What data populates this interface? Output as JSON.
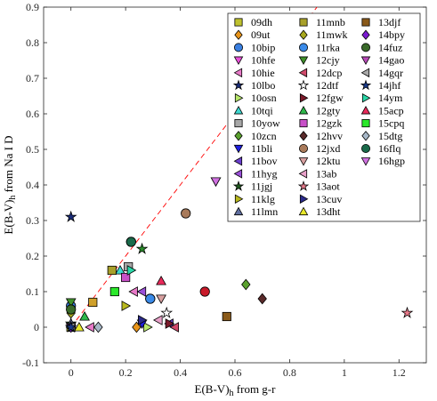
{
  "chart_data": {
    "type": "scatter",
    "xlabel": "E(B-V)_h from g-r",
    "ylabel": "E(B-V)_h from Na I D",
    "xlim": [
      -0.1,
      1.3
    ],
    "ylim": [
      -0.1,
      0.9
    ],
    "xticks": [
      "0",
      "0.2",
      "0.4",
      "0.6",
      "0.8",
      "1",
      "1.2"
    ],
    "xtick_values": [
      0,
      0.2,
      0.4,
      0.6,
      0.8,
      1.0,
      1.2
    ],
    "yticks": [
      "-0.1",
      "0",
      "0.1",
      "0.2",
      "0.3",
      "0.4",
      "0.5",
      "0.6",
      "0.7",
      "0.8",
      "0.9"
    ],
    "ytick_values": [
      -0.1,
      0,
      0.1,
      0.2,
      0.3,
      0.4,
      0.5,
      0.6,
      0.7,
      0.8,
      0.9
    ],
    "grid": false,
    "legend_placement": "top-right",
    "reference_line": {
      "style": "dashed",
      "color": "#ff0000",
      "slope": 1,
      "intercept": 0
    },
    "series": [
      {
        "name": "09dh",
        "marker": "square",
        "color": "#bfc22e",
        "points": [
          [
            0.0,
            0.0
          ]
        ]
      },
      {
        "name": "09ut",
        "marker": "diamond",
        "color": "#e8941a",
        "points": [
          [
            0.24,
            0.0
          ]
        ]
      },
      {
        "name": "10bip",
        "marker": "circle",
        "color": "#3a7fe0",
        "points": [
          [
            0.0,
            0.06
          ],
          [
            0.29,
            0.08
          ]
        ]
      },
      {
        "name": "10hfe",
        "marker": "triangle-down",
        "color": "#e84fd8",
        "points": [
          [
            0.0,
            0.0
          ]
        ]
      },
      {
        "name": "10hie",
        "marker": "triangle-left",
        "color": "#e87ac8",
        "points": [
          [
            0.23,
            0.1
          ],
          [
            0.07,
            0.0
          ]
        ]
      },
      {
        "name": "10lbo",
        "marker": "star",
        "color": "#1a2d7a",
        "points": [
          [
            0.0,
            0.31
          ]
        ]
      },
      {
        "name": "10osn",
        "marker": "triangle-right",
        "color": "#b8e86a",
        "points": [
          [
            0.28,
            0.0
          ]
        ]
      },
      {
        "name": "10tqi",
        "marker": "triangle-up",
        "color": "#3ed8d0",
        "points": [
          [
            0.18,
            0.16
          ]
        ]
      },
      {
        "name": "10yow",
        "marker": "square",
        "color": "#a8a8a8",
        "points": [
          [
            0.21,
            0.17
          ]
        ]
      },
      {
        "name": "10zcn",
        "marker": "diamond",
        "color": "#5aa12e",
        "points": [
          [
            0.64,
            0.12
          ]
        ]
      },
      {
        "name": "11bli",
        "marker": "triangle-down",
        "color": "#1f1fe0",
        "points": [
          [
            0.26,
            0.01
          ]
        ]
      },
      {
        "name": "11bov",
        "marker": "triangle-left",
        "color": "#6b3fd0",
        "points": [
          [
            0.36,
            0.01
          ]
        ]
      },
      {
        "name": "11hyg",
        "marker": "triangle-left",
        "color": "#9a4fd8",
        "points": [
          [
            0.26,
            0.1
          ]
        ]
      },
      {
        "name": "11jgj",
        "marker": "star",
        "color": "#1f5a1f",
        "points": [
          [
            0.0,
            0.01
          ]
        ]
      },
      {
        "name": "11klg",
        "marker": "triangle-right",
        "color": "#b8b81e",
        "points": [
          [
            0.2,
            0.06
          ]
        ]
      },
      {
        "name": "11lmn",
        "marker": "triangle-up",
        "color": "#606fa0",
        "points": [
          [
            0.0,
            0.01
          ]
        ]
      },
      {
        "name": "11mnb",
        "marker": "square",
        "color": "#a8a02a",
        "points": [
          [
            0.15,
            0.16
          ]
        ]
      },
      {
        "name": "11mwk",
        "marker": "diamond",
        "color": "#a8a81e",
        "points": [
          [
            0.0,
            0.04
          ]
        ]
      },
      {
        "name": "11rka",
        "marker": "circle",
        "color": "#3a8ae8",
        "points": [
          [
            0.29,
            0.08
          ]
        ]
      },
      {
        "name": "12cjy",
        "marker": "triangle-down",
        "color": "#3f8f2a",
        "points": [
          [
            0.0,
            0.07
          ]
        ]
      },
      {
        "name": "12dcp",
        "marker": "triangle-left",
        "color": "#d04a6a",
        "points": [
          [
            0.38,
            0.0
          ]
        ]
      },
      {
        "name": "12dtf",
        "marker": "star-open",
        "color": "#ffffff",
        "points": [
          [
            0.35,
            0.04
          ]
        ]
      },
      {
        "name": "12fgw",
        "marker": "triangle-right",
        "color": "#7a1a2a",
        "points": [
          [
            0.36,
            0.01
          ]
        ]
      },
      {
        "name": "12gty",
        "marker": "triangle-up",
        "color": "#2eb84a",
        "points": [
          [
            0.05,
            0.03
          ]
        ]
      },
      {
        "name": "12gzk",
        "marker": "square",
        "color": "#c850c8",
        "points": [
          [
            0.2,
            0.14
          ]
        ]
      },
      {
        "name": "12hvv",
        "marker": "diamond",
        "color": "#5a2a2a",
        "points": [
          [
            0.7,
            0.08
          ]
        ]
      },
      {
        "name": "12jxd",
        "marker": "circle",
        "color": "#a87a5a",
        "points": [
          [
            0.42,
            0.32
          ]
        ]
      },
      {
        "name": "12ktu",
        "marker": "triangle-down",
        "color": "#d8a0a0",
        "points": [
          [
            0.33,
            0.08
          ]
        ]
      },
      {
        "name": "13ab",
        "marker": "triangle-left",
        "color": "#e8a0c8",
        "points": [
          [
            0.32,
            0.02
          ]
        ]
      },
      {
        "name": "13aot",
        "marker": "star",
        "color": "#e87a8a",
        "points": [
          [
            1.23,
            0.04
          ]
        ]
      },
      {
        "name": "13cuv",
        "marker": "triangle-right",
        "color": "#2a2a8a",
        "points": [
          [
            0.26,
            0.02
          ]
        ]
      },
      {
        "name": "13dht",
        "marker": "triangle-up",
        "color": "#e8e82a",
        "points": [
          [
            0.03,
            0.0
          ]
        ]
      },
      {
        "name": "13djf",
        "marker": "square",
        "color": "#8a5a1a",
        "points": [
          [
            0.57,
            0.03
          ]
        ]
      },
      {
        "name": "14bpy",
        "marker": "diamond",
        "color": "#7a1ad0",
        "points": [
          [
            0.0,
            0.0
          ]
        ]
      },
      {
        "name": "14fuz",
        "marker": "circle",
        "color": "#3a6a2a",
        "points": [
          [
            0.22,
            0.24
          ]
        ]
      },
      {
        "name": "14gao",
        "marker": "triangle-down",
        "color": "#b84ab8",
        "points": [
          [
            0.53,
            0.41
          ]
        ]
      },
      {
        "name": "14gqr",
        "marker": "triangle-left",
        "color": "#a8a8a8",
        "points": [
          [
            0.0,
            0.0
          ]
        ]
      },
      {
        "name": "14jhf",
        "marker": "star",
        "color": "#1a3a8a",
        "points": [
          [
            0.0,
            0.0
          ]
        ]
      },
      {
        "name": "14ym",
        "marker": "triangle-right",
        "color": "#2ad8a8",
        "points": [
          [
            0.22,
            0.16
          ]
        ]
      },
      {
        "name": "15acp",
        "marker": "triangle-up",
        "color": "#e82a5a",
        "points": [
          [
            0.33,
            0.13
          ]
        ]
      },
      {
        "name": "15cpq",
        "marker": "square",
        "color": "#2ae82a",
        "points": [
          [
            0.16,
            0.1
          ]
        ]
      },
      {
        "name": "15dtg",
        "marker": "diamond",
        "color": "#a8b8c8",
        "points": [
          [
            0.1,
            0.0
          ]
        ]
      },
      {
        "name": "16flq",
        "marker": "circle",
        "color": "#1a6a4a",
        "points": [
          [
            0.22,
            0.24
          ]
        ]
      },
      {
        "name": "16hgp",
        "marker": "triangle-down",
        "color": "#d070e0",
        "points": [
          [
            0.53,
            0.41
          ]
        ]
      },
      {
        "name": "",
        "marker": "star",
        "color": "#2a8a2a",
        "points": [
          [
            0.26,
            0.22
          ]
        ]
      },
      {
        "name": "",
        "marker": "circle",
        "color": "#c81a2a",
        "points": [
          [
            0.49,
            0.1
          ]
        ]
      },
      {
        "name": "",
        "marker": "square",
        "color": "#d0a02a",
        "points": [
          [
            0.08,
            0.07
          ]
        ]
      },
      {
        "name": "",
        "marker": "circle",
        "color": "#3a6a2a",
        "points": [
          [
            0.0,
            0.05
          ]
        ]
      }
    ],
    "legend_columns": [
      [
        "09dh",
        "09ut",
        "10bip",
        "10hfe",
        "10hie",
        "10lbo",
        "10osn",
        "10tqi",
        "10yow",
        "10zcn",
        "11bli",
        "11bov",
        "11hyg",
        "11jgj",
        "11klg",
        "11lmn"
      ],
      [
        "11mnb",
        "11mwk",
        "11rka",
        "12cjy",
        "12dcp",
        "12dtf",
        "12fgw",
        "12gty",
        "12gzk",
        "12hvv",
        "12jxd",
        "12ktu",
        "13ab",
        "13aot",
        "13cuv",
        "13dht"
      ],
      [
        "13djf",
        "14bpy",
        "14fuz",
        "14gao",
        "14gqr",
        "14jhf",
        "14ym",
        "15acp",
        "15cpq",
        "15dtg",
        "16flq",
        "16hgp"
      ]
    ]
  }
}
